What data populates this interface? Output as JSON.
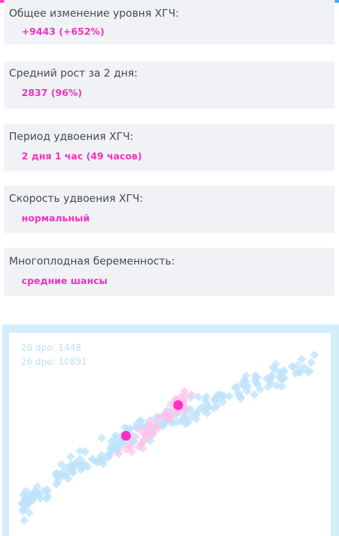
{
  "stats": [
    {
      "label": "Общее изменение уровня ХГЧ:",
      "value": "+9443 (+652%)"
    },
    {
      "label": "Средний рост за 2 дня:",
      "value": "2837 (96%)"
    },
    {
      "label": "Период удвоения ХГЧ:",
      "value": "2 дня 1 час (49 часов)"
    },
    {
      "label": "Скорость удвоения ХГЧ:",
      "value": "нормальный"
    },
    {
      "label": "Многоплодная беременность:",
      "value": "средние шансы"
    }
  ],
  "colors": {
    "accent": "#f032c3",
    "card_bg": "#f1f2f5",
    "chart_frame": "#d3eefb",
    "reference_points": "#bfe3fb",
    "user_band": "#ffc2ea",
    "user_point": "#ff2fc0"
  },
  "chart_data": {
    "type": "scatter",
    "legend": [
      {
        "dpo": "20 dpo",
        "value": "1448"
      },
      {
        "dpo": "26 dpo",
        "value": "10891"
      }
    ],
    "user_points": [
      {
        "dpo": 20,
        "hcg": 1448
      },
      {
        "dpo": 26,
        "hcg": 10891
      }
    ]
  }
}
